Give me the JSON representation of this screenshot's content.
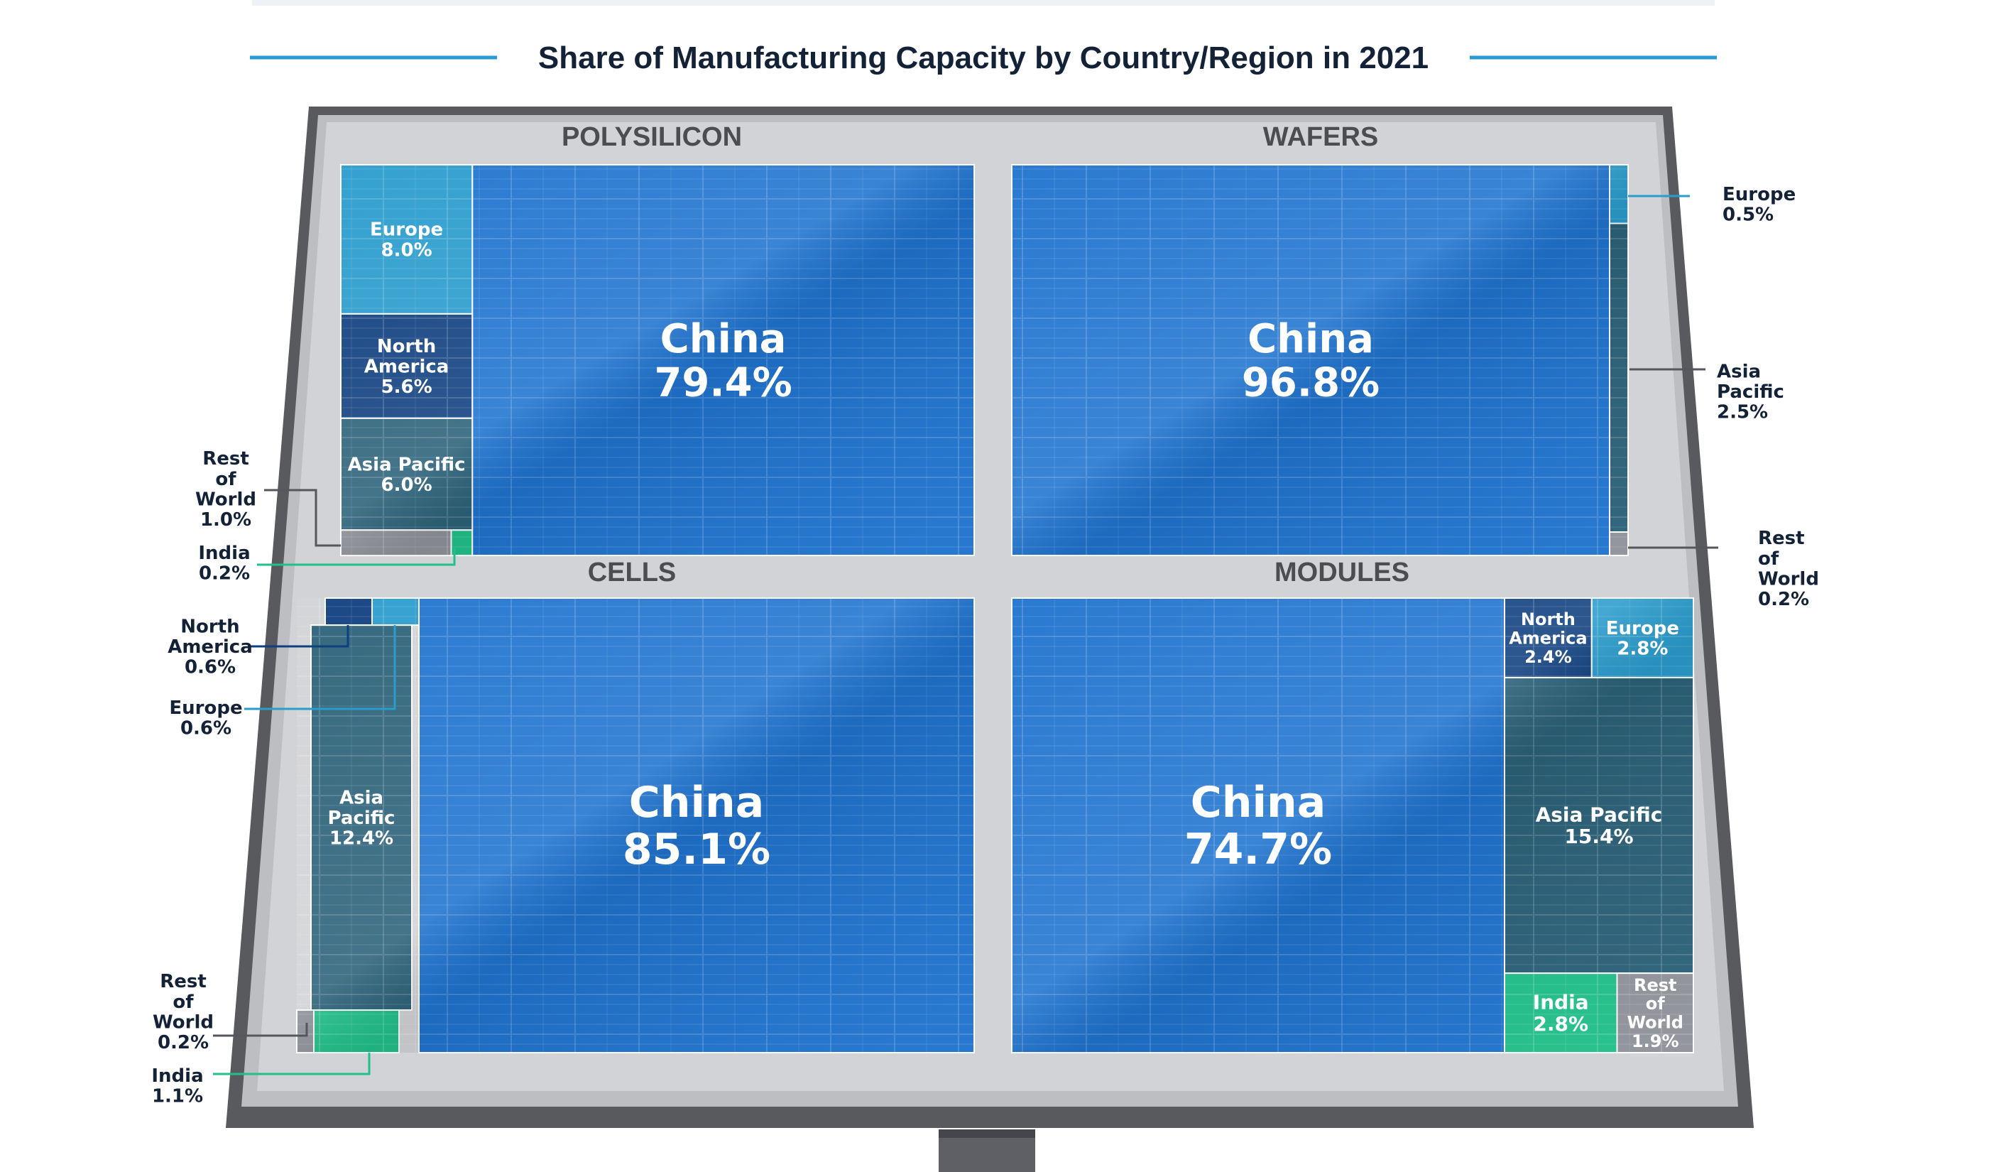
{
  "chart_data": {
    "type": "treemap",
    "title": "Share of Manufacturing Capacity by Country/Region in 2021",
    "unit": "%",
    "colors": {
      "China": "#1f73cf",
      "Europe": "#2a9ccd",
      "North America": "#0f3f7f",
      "Asia Pacific": "#2b6179",
      "India": "#21c08a",
      "Rest of World": "#8f929a",
      "frame": "#c7c8cb",
      "title_rule": "#2a9ad6",
      "title": "#142238"
    },
    "panels": [
      {
        "name": "POLYSILICON",
        "segments": [
          {
            "region": "China",
            "label": "China",
            "value": 79.4,
            "value_label": "79.4%"
          },
          {
            "region": "Europe",
            "label": "Europe",
            "value": 8.0,
            "value_label": "8.0%"
          },
          {
            "region": "North America",
            "label": "North America",
            "value": 5.6,
            "value_label": "5.6%"
          },
          {
            "region": "Asia Pacific",
            "label": "Asia Pacific",
            "value": 6.0,
            "value_label": "6.0%"
          },
          {
            "region": "Rest of World",
            "label": "Rest of World",
            "value": 1.0,
            "value_label": "1.0%"
          },
          {
            "region": "India",
            "label": "India",
            "value": 0.2,
            "value_label": "0.2%"
          }
        ]
      },
      {
        "name": "WAFERS",
        "segments": [
          {
            "region": "China",
            "label": "China",
            "value": 96.8,
            "value_label": "96.8%"
          },
          {
            "region": "Europe",
            "label": "Europe",
            "value": 0.5,
            "value_label": "0.5%"
          },
          {
            "region": "Asia Pacific",
            "label": "Asia Pacific",
            "value": 2.5,
            "value_label": "2.5%"
          },
          {
            "region": "Rest of World",
            "label": "Rest of World",
            "value": 0.2,
            "value_label": "0.2%"
          }
        ]
      },
      {
        "name": "CELLS",
        "segments": [
          {
            "region": "China",
            "label": "China",
            "value": 85.1,
            "value_label": "85.1%"
          },
          {
            "region": "North America",
            "label": "North America",
            "value": 0.6,
            "value_label": "0.6%"
          },
          {
            "region": "Europe",
            "label": "Europe",
            "value": 0.6,
            "value_label": "0.6%"
          },
          {
            "region": "Asia Pacific",
            "label": "Asia Pacific",
            "value": 12.4,
            "value_label": "12.4%"
          },
          {
            "region": "Rest of World",
            "label": "Rest of World",
            "value": 0.2,
            "value_label": "0.2%"
          },
          {
            "region": "India",
            "label": "India",
            "value": 1.1,
            "value_label": "1.1%"
          }
        ]
      },
      {
        "name": "MODULES",
        "segments": [
          {
            "region": "China",
            "label": "China",
            "value": 74.7,
            "value_label": "74.7%"
          },
          {
            "region": "North America",
            "label": "North America",
            "value": 2.4,
            "value_label": "2.4%"
          },
          {
            "region": "Europe",
            "label": "Europe",
            "value": 2.8,
            "value_label": "2.8%"
          },
          {
            "region": "Asia Pacific",
            "label": "Asia Pacific",
            "value": 15.4,
            "value_label": "15.4%"
          },
          {
            "region": "India",
            "label": "India",
            "value": 2.8,
            "value_label": "2.8%"
          },
          {
            "region": "Rest of World",
            "label": "Rest of World",
            "value": 1.9,
            "value_label": "1.9%"
          }
        ]
      }
    ]
  }
}
